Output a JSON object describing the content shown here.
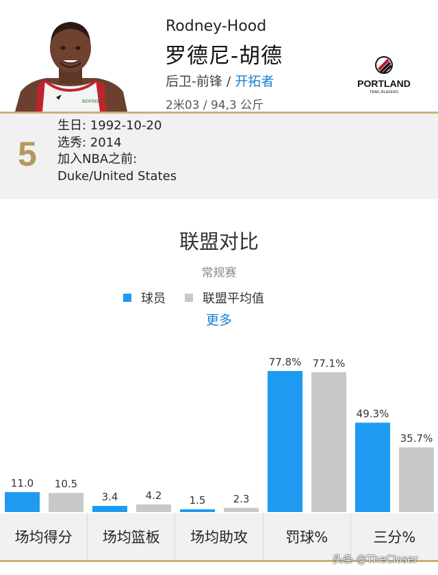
{
  "player": {
    "name_en": "Rodney-Hood",
    "name_cn": "罗德尼-胡德",
    "position": "后卫-前锋",
    "separator": " / ",
    "team": "开拓者",
    "size": "2米03 / 94,3 公斤",
    "jersey_number": "5",
    "birthday": "生日: 1992-10-20",
    "draft": "选秀: 2014",
    "pre_nba_label": "加入NBA之前:",
    "pre_nba": "Duke/United States",
    "photo_icon": "player-headshot",
    "jersey_text": "BIOFREEZE"
  },
  "team_logo": {
    "name": "PORTLAND",
    "sub": "TRAIL BLAZERS",
    "icon": "pinwheel-logo-icon"
  },
  "comparison": {
    "title": "联盟对比",
    "subtitle": "常规赛",
    "legend_player": "球员",
    "legend_league": "联盟平均值",
    "more_link": "更多"
  },
  "colors": {
    "player": "#1e9bf0",
    "league": "#c8c8c8",
    "accent_gold": "#c8b07a",
    "link": "#1a7fd0"
  },
  "chart_data": {
    "type": "bar",
    "categories": [
      "场均得分",
      "场均篮板",
      "场均助攻",
      "罚球%",
      "三分%"
    ],
    "series": [
      {
        "name": "球员",
        "values": [
          11.0,
          3.4,
          1.5,
          77.8,
          49.3
        ],
        "labels": [
          "11.0",
          "3.4",
          "1.5",
          "77.8%",
          "49.3%"
        ]
      },
      {
        "name": "联盟平均值",
        "values": [
          10.5,
          4.2,
          2.3,
          77.1,
          35.7
        ],
        "labels": [
          "10.5",
          "4.2",
          "2.3",
          "77.1%",
          "35.7%"
        ]
      }
    ],
    "title": "联盟对比",
    "subtitle": "常规赛",
    "legend": "top-center",
    "grid": false
  },
  "watermark": "头条 @TheCloser"
}
